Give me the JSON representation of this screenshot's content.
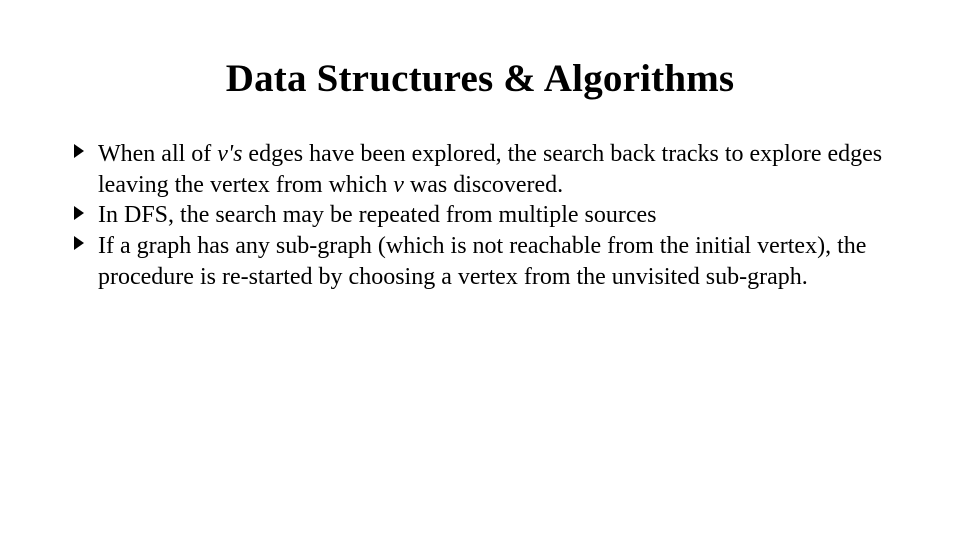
{
  "title": "Data Structures & Algorithms",
  "bullets": [
    {
      "segments": [
        {
          "text": "When all of ",
          "italic": false
        },
        {
          "text": "v's",
          "italic": true
        },
        {
          "text": " edges have been explored, the search back tracks to explore edges leaving the vertex from which ",
          "italic": false
        },
        {
          "text": "v",
          "italic": true
        },
        {
          "text": " was discovered.",
          "italic": false
        }
      ]
    },
    {
      "segments": [
        {
          "text": "In DFS, the search may be repeated from multiple sources",
          "italic": false
        }
      ]
    },
    {
      "segments": [
        {
          "text": "If a graph has any sub-graph (which is not reachable from the initial vertex), the procedure is re-started by choosing a vertex from the unvisited sub-graph.",
          "italic": false
        }
      ]
    }
  ],
  "style": {
    "background_color": "#ffffff",
    "text_color": "#000000",
    "title_fontsize": 39,
    "title_weight": 700,
    "body_fontsize": 24,
    "font_family": "Times New Roman",
    "bullet_glyph": "chevron-right",
    "bullet_color": "#000000"
  }
}
